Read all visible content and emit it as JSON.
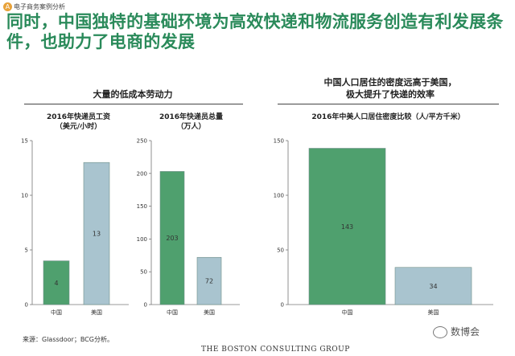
{
  "header": {
    "badge": "A",
    "section_label": "电子商务案例分析",
    "title": "同时，中国独特的基础环境为高效快递和物流服务创造有利发展条件，也助力了电商的发展"
  },
  "panels": {
    "left_heading": "大量的低成本劳动力",
    "right_heading_line1": "中国人口居住的密度远高于美国，",
    "right_heading_line2": "极大提升了快递的效率"
  },
  "chart_titles": {
    "wage_line1": "2016年快递员工资",
    "wage_line2": "（美元/小时）",
    "couriers_line1": "2016年快递员总量",
    "couriers_line2": "（万人）",
    "density": "2016年中美人口居住密度比较（人/平方千米）"
  },
  "chart_data": [
    {
      "type": "bar",
      "categories": [
        "中国",
        "美国"
      ],
      "values": [
        4,
        13
      ],
      "ylim": [
        0,
        15
      ],
      "yticks": [
        0,
        5,
        10,
        15
      ],
      "colors": [
        "#4fa06e",
        "#a9c4cf"
      ]
    },
    {
      "type": "bar",
      "categories": [
        "中国",
        "美国"
      ],
      "values": [
        203,
        72
      ],
      "ylim": [
        0,
        250
      ],
      "yticks": [
        0,
        50,
        100,
        150,
        200,
        250
      ],
      "colors": [
        "#4fa06e",
        "#a9c4cf"
      ]
    },
    {
      "type": "bar",
      "categories": [
        "中国",
        "美国"
      ],
      "values": [
        143,
        34
      ],
      "ylim": [
        0,
        150
      ],
      "yticks": [
        0,
        50,
        100,
        150
      ],
      "colors": [
        "#4fa06e",
        "#a9c4cf"
      ]
    }
  ],
  "source": "来源：Glassdoor；BCG分析。",
  "footer": "THE BOSTON CONSULTING GROUP",
  "watermark": "数博会"
}
